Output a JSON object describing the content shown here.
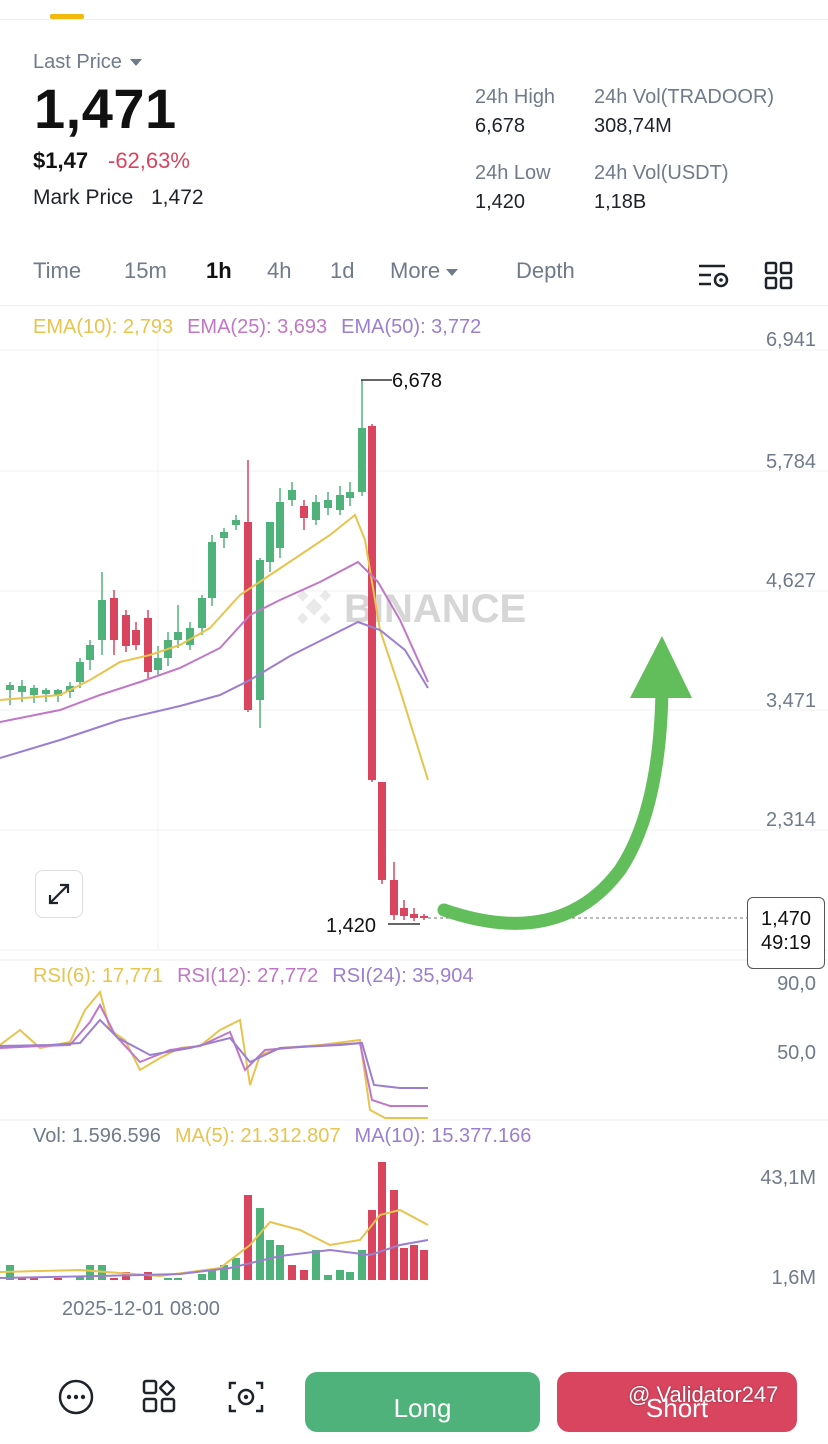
{
  "header": {
    "last_price_label": "Last Price",
    "last_price": "1,471",
    "usd_price": "$1,47",
    "change_pct": "-62,63%",
    "mark_price_label": "Mark Price",
    "mark_price": "1,472"
  },
  "stats": {
    "high_label": "24h High",
    "high_value": "6,678",
    "vol_token_label": "24h Vol(TRADOOR)",
    "vol_token_value": "308,74M",
    "low_label": "24h Low",
    "low_value": "1,420",
    "vol_usdt_label": "24h Vol(USDT)",
    "vol_usdt_value": "1,18B"
  },
  "tabs": {
    "time": "Time",
    "m15": "15m",
    "h1": "1h",
    "h4": "4h",
    "d1": "1d",
    "more": "More",
    "depth": "Depth"
  },
  "indicators": {
    "ema10": "EMA(10): 2,793",
    "ema25": "EMA(25): 3,693",
    "ema50": "EMA(50): 3,772",
    "rsi6": "RSI(6): 17,771",
    "rsi12": "RSI(12): 27,772",
    "rsi24": "RSI(24): 35,904",
    "vol": "Vol: 1.596.596",
    "vol_ma5": "MA(5): 21.312.807",
    "vol_ma10": "MA(10): 15.377.166"
  },
  "price_axis": [
    "6,941",
    "5,784",
    "4,627",
    "3,471",
    "2,314"
  ],
  "rsi_axis": [
    "90,0",
    "50,0"
  ],
  "vol_axis": [
    "43,1M",
    "1,6M"
  ],
  "chart_marks": {
    "high_label": "6,678",
    "low_label": "1,420"
  },
  "watermark": "BINANCE",
  "current_price_tag": {
    "price": "1,470",
    "countdown": "49:19"
  },
  "date_label": "2025-12-01 08:00",
  "actions": {
    "long": "Long",
    "short": "Short"
  },
  "credit": "@ Validator247",
  "colors": {
    "up": "#4fb27a",
    "down": "#d9455f",
    "ema10": "#e8c34d",
    "ema25": "#c276c8",
    "ema50": "#9a7fd0",
    "arrow": "#62bd5b"
  }
}
